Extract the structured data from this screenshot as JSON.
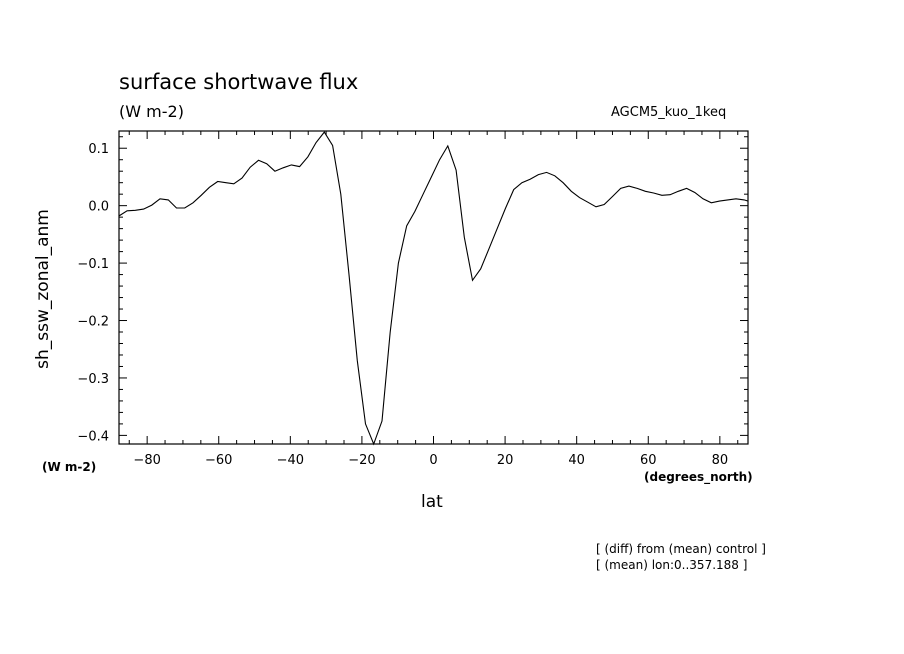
{
  "chart_data": {
    "type": "line",
    "title": "surface shortwave flux",
    "units": "(W m-2)",
    "run_label": "AGCM5_kuo_1keq",
    "xlabel": "lat",
    "xunits": "(degrees_north)",
    "ylabel": "sh_ssw_zonal_anm",
    "yunits": "(W m-2)",
    "notes": [
      "[ (diff) from (mean) control ]",
      "[ (mean) lon:0..357.188 ]"
    ],
    "xlim": [
      -87.8638,
      87.8638
    ],
    "ylim": [
      -0.415,
      0.13
    ],
    "x_ticks": [
      -80,
      -60,
      -40,
      -20,
      0,
      20,
      40,
      60,
      80
    ],
    "x_tick_labels": [
      "−80",
      "−60",
      "−40",
      "−20",
      "0",
      "20",
      "40",
      "60",
      "80"
    ],
    "y_ticks": [
      0.1,
      0.0,
      -0.1,
      -0.2,
      -0.3,
      -0.4
    ],
    "y_tick_labels": [
      "0.1",
      "0.0",
      "−0.1",
      "−0.2",
      "−0.3",
      "−0.4"
    ],
    "grid": false,
    "line_color": "#000000",
    "series": [
      {
        "x": [
          -87.9,
          -85.6,
          -83.3,
          -81.0,
          -78.7,
          -76.4,
          -74.1,
          -71.8,
          -69.5,
          -67.2,
          -64.9,
          -62.6,
          -60.3,
          -58.0,
          -55.8,
          -53.5,
          -51.2,
          -48.9,
          -46.6,
          -44.3,
          -42.0,
          -39.7,
          -37.4,
          -35.1,
          -32.8,
          -30.5,
          -28.2,
          -25.9,
          -23.6,
          -21.3,
          -19.0,
          -16.7,
          -14.4,
          -12.1,
          -9.8,
          -7.5,
          -5.2,
          -2.9,
          -0.6,
          1.7,
          4.0,
          6.3,
          8.6,
          10.9,
          13.2,
          15.5,
          17.8,
          20.1,
          22.4,
          24.7,
          27.0,
          29.3,
          31.6,
          33.9,
          36.2,
          38.5,
          40.8,
          43.1,
          45.4,
          47.7,
          50.0,
          52.3,
          54.6,
          56.9,
          59.2,
          61.5,
          63.8,
          66.1,
          68.4,
          70.7,
          73.0,
          75.3,
          77.6,
          79.9,
          82.2,
          84.5,
          86.8,
          87.9
        ],
        "y": [
          -0.018,
          -0.009,
          -0.008,
          -0.006,
          0.001,
          0.012,
          0.01,
          -0.004,
          -0.004,
          0.005,
          0.018,
          0.032,
          0.042,
          0.04,
          0.038,
          0.048,
          0.067,
          0.079,
          0.073,
          0.06,
          0.066,
          0.071,
          0.068,
          0.085,
          0.11,
          0.128,
          0.105,
          0.02,
          -0.12,
          -0.27,
          -0.38,
          -0.415,
          -0.375,
          -0.22,
          -0.1,
          -0.035,
          -0.01,
          0.02,
          0.05,
          0.08,
          0.104,
          0.062,
          -0.055,
          -0.13,
          -0.11,
          -0.075,
          -0.04,
          -0.005,
          0.028,
          0.04,
          0.046,
          0.054,
          0.058,
          0.052,
          0.04,
          0.025,
          0.014,
          0.006,
          -0.002,
          0.002,
          0.016,
          0.03,
          0.034,
          0.03,
          0.025,
          0.022,
          0.018,
          0.019,
          0.025,
          0.03,
          0.023,
          0.012,
          0.005,
          0.008,
          0.01,
          0.012,
          0.01,
          0.008
        ]
      }
    ]
  }
}
